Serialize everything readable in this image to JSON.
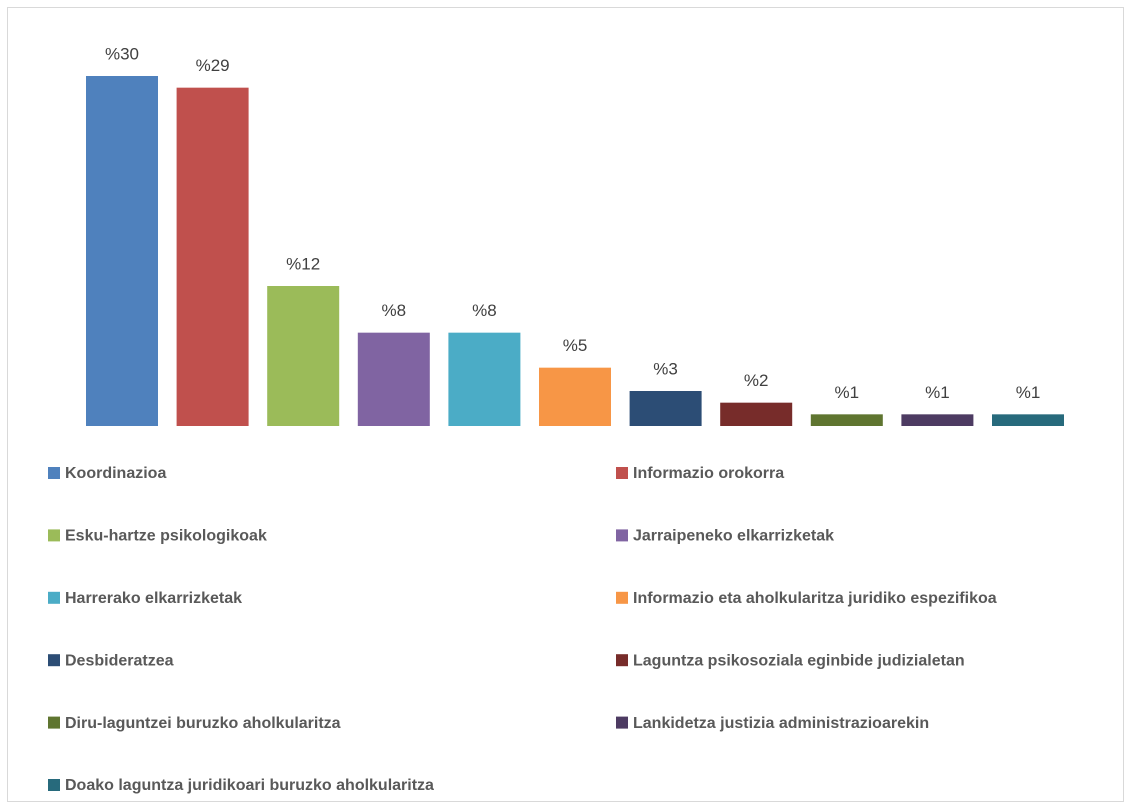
{
  "chart_data": {
    "type": "bar",
    "categories": [
      "Koordinazioa",
      "Informazio orokorra",
      "Esku-hartze psikologikoak",
      "Jarraipeneko elkarrizketak",
      "Harrerako elkarrizketak",
      "Informazio eta aholkularitza juridiko espezifikoa",
      "Desbideratzea",
      "Laguntza psikosoziala eginbide judizialetan",
      "Diru-laguntzei buruzko aholkularitza",
      "Lankidetza justizia administrazioarekin",
      "Doako laguntza juridikoari buruzko aholkularitza"
    ],
    "values": [
      30,
      29,
      12,
      8,
      8,
      5,
      3,
      2,
      1,
      1,
      1
    ],
    "value_labels": [
      "%30",
      "%29",
      "%12",
      "%8",
      "%8",
      "%5",
      "%3",
      "%2",
      "%1",
      "%1",
      "%1"
    ],
    "colors": [
      "#4f81bd",
      "#c0504d",
      "#9bbb59",
      "#8064a2",
      "#4bacc6",
      "#f79646",
      "#2c4d75",
      "#772c2a",
      "#5f7530",
      "#4d3b62",
      "#276a7c"
    ],
    "legend": "bottom"
  }
}
